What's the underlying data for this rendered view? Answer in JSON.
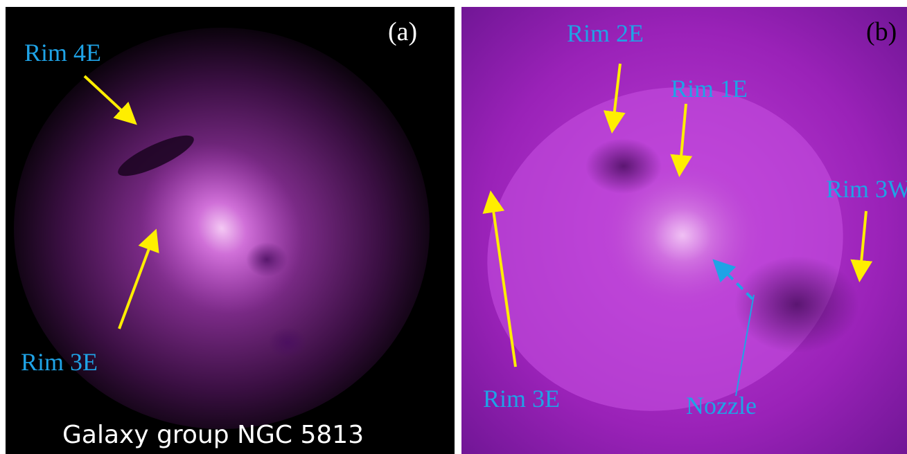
{
  "panels": [
    {
      "tag": "(a)",
      "labels": [
        "Rim 4E",
        "Rim 3E"
      ],
      "caption": "Galaxy group NGC 5813"
    },
    {
      "tag": "(b)",
      "labels": [
        "Rim 2E",
        "Rim 1E",
        "Rim 3W",
        "Rim 3E",
        "Nozzle"
      ]
    }
  ]
}
